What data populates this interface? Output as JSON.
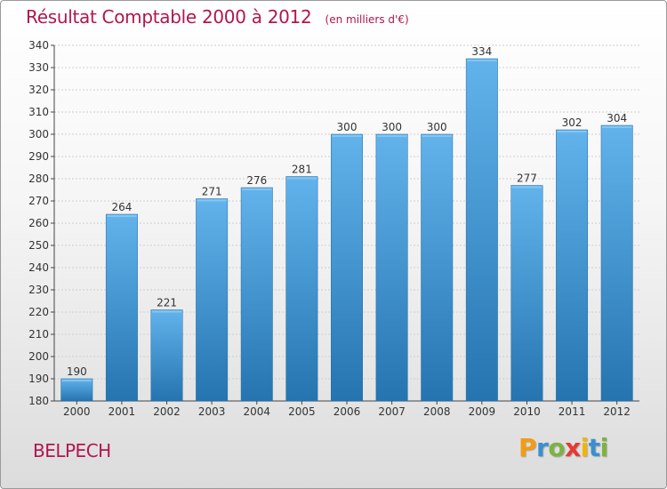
{
  "title": "Résultat Comptable 2000 à 2012",
  "subtitle": "(en milliers d'€)",
  "place_name": "BELPECH",
  "logo": {
    "letters": [
      "P",
      "r",
      "o",
      "x",
      "i",
      "t",
      "i"
    ],
    "colors": [
      "#f39c12",
      "#3a8fd0",
      "#7cb342",
      "#e53935",
      "#f4b400",
      "#3a8fd0",
      "#7cb342"
    ]
  },
  "colors": {
    "title": "#b0174e",
    "bar_top": "#62b3ec",
    "bar_bottom": "#2574b0",
    "grid": "#cfcfcf",
    "axis": "#444444"
  },
  "chart_data": {
    "type": "bar",
    "title": "Résultat Comptable 2000 à 2012",
    "subtitle": "(en milliers d'€)",
    "xlabel": "",
    "ylabel": "",
    "categories": [
      "2000",
      "2001",
      "2002",
      "2003",
      "2004",
      "2005",
      "2006",
      "2007",
      "2008",
      "2009",
      "2010",
      "2011",
      "2012"
    ],
    "values": [
      190,
      264,
      221,
      271,
      276,
      281,
      300,
      300,
      300,
      334,
      277,
      302,
      304
    ],
    "ylim": [
      180,
      340
    ],
    "ytick_step": 10,
    "grid": true
  }
}
